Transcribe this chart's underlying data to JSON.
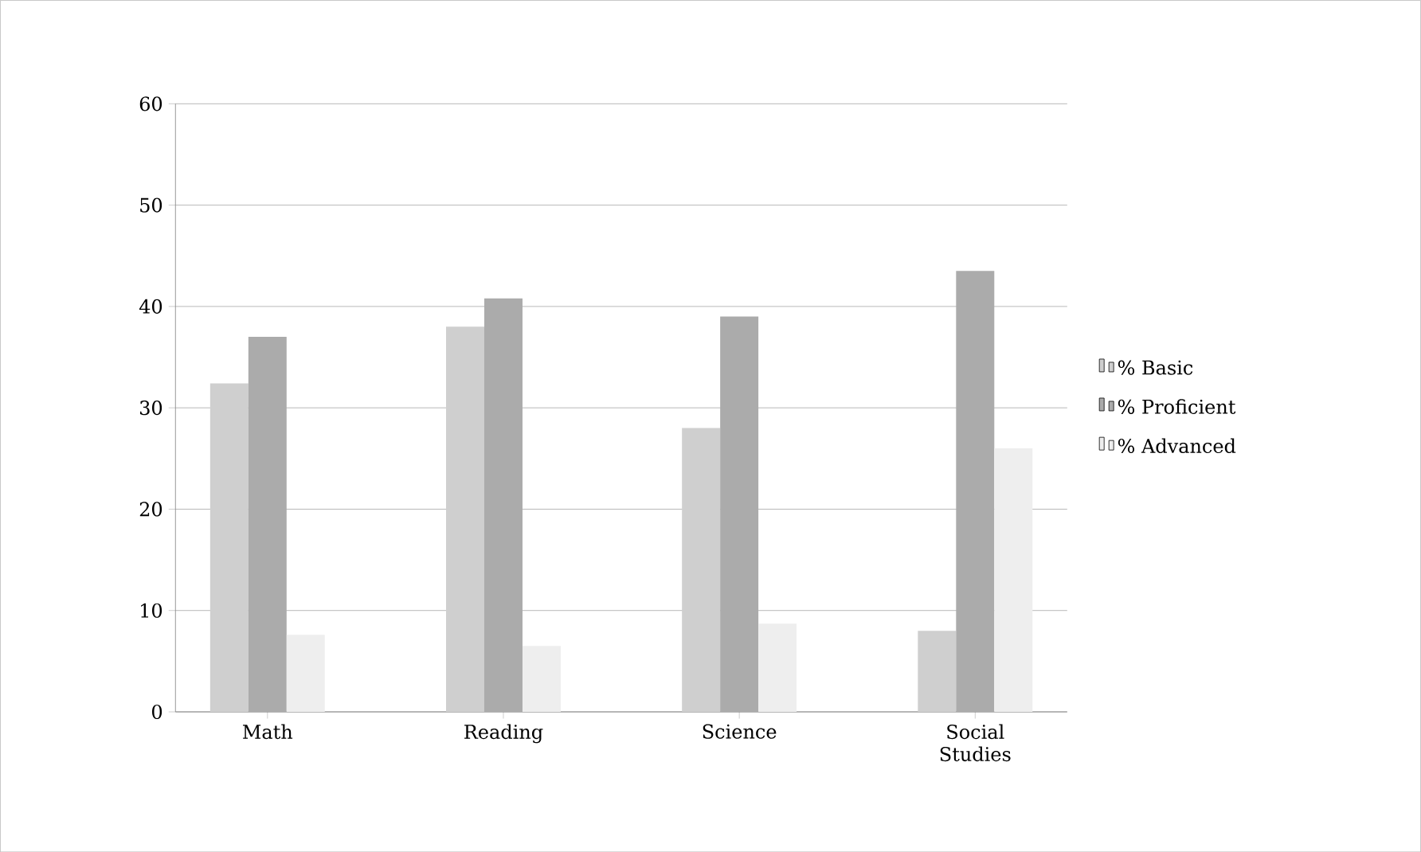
{
  "chart_data": {
    "type": "bar",
    "categories": [
      "Math",
      "Reading",
      "Science",
      "Social Studies"
    ],
    "series": [
      {
        "name": "% Basic",
        "color": "#cfcfcf",
        "values": [
          32.4,
          38,
          28,
          8
        ]
      },
      {
        "name": "% Proficient",
        "color": "#ababab",
        "values": [
          37,
          40.8,
          39,
          43.5
        ]
      },
      {
        "name": "% Advanced",
        "color": "#eeeeee",
        "values": [
          7.6,
          6.5,
          8.7,
          26
        ]
      }
    ],
    "ylim": [
      0,
      60
    ],
    "yticks": [
      0,
      10,
      20,
      30,
      40,
      50,
      60
    ],
    "grid": "y",
    "legend": "right"
  }
}
